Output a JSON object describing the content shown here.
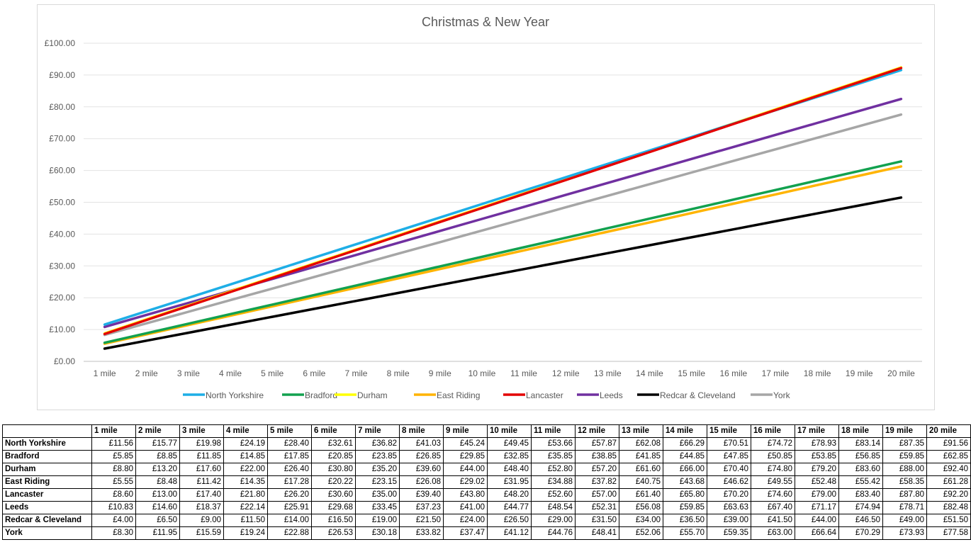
{
  "chart_data": {
    "type": "line",
    "title": "Christmas & New Year",
    "xlabel": "",
    "ylabel": "",
    "categories": [
      "1 mile",
      "2 mile",
      "3 mile",
      "4 mile",
      "5 mile",
      "6 mile",
      "7 mile",
      "8 mile",
      "9 mile",
      "10 mile",
      "11 mile",
      "12 mile",
      "13 mile",
      "14 mile",
      "15 mile",
      "16 mile",
      "17 mile",
      "18 mile",
      "19 mile",
      "20 mile"
    ],
    "ylim": [
      0,
      100
    ],
    "yticks": [
      "£0.00",
      "£10.00",
      "£20.00",
      "£30.00",
      "£40.00",
      "£50.00",
      "£60.00",
      "£70.00",
      "£80.00",
      "£90.00",
      "£100.00"
    ],
    "grid": "horizontal",
    "legend_position": "bottom",
    "series": [
      {
        "name": "North Yorkshire",
        "color": "#1eaee6",
        "values": [
          11.56,
          15.77,
          19.98,
          24.19,
          28.4,
          32.61,
          36.82,
          41.03,
          45.24,
          49.45,
          53.66,
          57.87,
          62.08,
          66.29,
          70.51,
          74.72,
          78.93,
          83.14,
          87.35,
          91.56
        ]
      },
      {
        "name": "Bradford",
        "color": "#12a14f",
        "values": [
          5.85,
          8.85,
          11.85,
          14.85,
          17.85,
          20.85,
          23.85,
          26.85,
          29.85,
          32.85,
          35.85,
          38.85,
          41.85,
          44.85,
          47.85,
          50.85,
          53.85,
          56.85,
          59.85,
          62.85
        ]
      },
      {
        "name": "Durham",
        "color": "#ffff00",
        "values": [
          8.8,
          13.2,
          17.6,
          22.0,
          26.4,
          30.8,
          35.2,
          39.6,
          44.0,
          48.4,
          52.8,
          57.2,
          61.6,
          66.0,
          70.4,
          74.8,
          79.2,
          83.6,
          88.0,
          92.4
        ]
      },
      {
        "name": "East Riding",
        "color": "#ffb400",
        "values": [
          5.55,
          8.48,
          11.42,
          14.35,
          17.28,
          20.22,
          23.15,
          26.08,
          29.02,
          31.95,
          34.88,
          37.82,
          40.75,
          43.68,
          46.62,
          49.55,
          52.48,
          55.42,
          58.35,
          61.28
        ]
      },
      {
        "name": "Lancaster",
        "color": "#e30000",
        "values": [
          8.6,
          13.0,
          17.4,
          21.8,
          26.2,
          30.6,
          35.0,
          39.4,
          43.8,
          48.2,
          52.6,
          57.0,
          61.4,
          65.8,
          70.2,
          74.6,
          79.0,
          83.4,
          87.8,
          92.2
        ]
      },
      {
        "name": "Leeds",
        "color": "#7030a0",
        "values": [
          10.83,
          14.6,
          18.37,
          22.14,
          25.91,
          29.68,
          33.45,
          37.23,
          41.0,
          44.77,
          48.54,
          52.31,
          56.08,
          59.85,
          63.63,
          67.4,
          71.17,
          74.94,
          78.71,
          82.48
        ]
      },
      {
        "name": "Redcar & Cleveland",
        "color": "#000000",
        "values": [
          4.0,
          6.5,
          9.0,
          11.5,
          14.0,
          16.5,
          19.0,
          21.5,
          24.0,
          26.5,
          29.0,
          31.5,
          34.0,
          36.5,
          39.0,
          41.5,
          44.0,
          46.5,
          49.0,
          51.5
        ]
      },
      {
        "name": "York",
        "color": "#a6a6a6",
        "values": [
          8.3,
          11.95,
          15.59,
          19.24,
          22.88,
          26.53,
          30.18,
          33.82,
          37.47,
          41.12,
          44.76,
          48.41,
          52.06,
          55.7,
          59.35,
          63.0,
          66.64,
          70.29,
          73.93,
          77.58
        ]
      }
    ]
  },
  "table": {
    "corner": "",
    "headers": [
      "1 mile",
      "2 mile",
      "3 mile",
      "4 mile",
      "5 mile",
      "6 mile",
      "7 mile",
      "8 mile",
      "9 mile",
      "10 mile",
      "11 mile",
      "12 mile",
      "13 mile",
      "14 mile",
      "15 mile",
      "16 mile",
      "17 mile",
      "18 mile",
      "19 mile",
      "20 mile"
    ],
    "rows": [
      {
        "label": "North Yorkshire",
        "values": [
          "£11.56",
          "£15.77",
          "£19.98",
          "£24.19",
          "£28.40",
          "£32.61",
          "£36.82",
          "£41.03",
          "£45.24",
          "£49.45",
          "£53.66",
          "£57.87",
          "£62.08",
          "£66.29",
          "£70.51",
          "£74.72",
          "£78.93",
          "£83.14",
          "£87.35",
          "£91.56"
        ]
      },
      {
        "label": "Bradford",
        "values": [
          "£5.85",
          "£8.85",
          "£11.85",
          "£14.85",
          "£17.85",
          "£20.85",
          "£23.85",
          "£26.85",
          "£29.85",
          "£32.85",
          "£35.85",
          "£38.85",
          "£41.85",
          "£44.85",
          "£47.85",
          "£50.85",
          "£53.85",
          "£56.85",
          "£59.85",
          "£62.85"
        ]
      },
      {
        "label": "Durham",
        "values": [
          "£8.80",
          "£13.20",
          "£17.60",
          "£22.00",
          "£26.40",
          "£30.80",
          "£35.20",
          "£39.60",
          "£44.00",
          "£48.40",
          "£52.80",
          "£57.20",
          "£61.60",
          "£66.00",
          "£70.40",
          "£74.80",
          "£79.20",
          "£83.60",
          "£88.00",
          "£92.40"
        ]
      },
      {
        "label": "East Riding",
        "values": [
          "£5.55",
          "£8.48",
          "£11.42",
          "£14.35",
          "£17.28",
          "£20.22",
          "£23.15",
          "£26.08",
          "£29.02",
          "£31.95",
          "£34.88",
          "£37.82",
          "£40.75",
          "£43.68",
          "£46.62",
          "£49.55",
          "£52.48",
          "£55.42",
          "£58.35",
          "£61.28"
        ]
      },
      {
        "label": "Lancaster",
        "values": [
          "£8.60",
          "£13.00",
          "£17.40",
          "£21.80",
          "£26.20",
          "£30.60",
          "£35.00",
          "£39.40",
          "£43.80",
          "£48.20",
          "£52.60",
          "£57.00",
          "£61.40",
          "£65.80",
          "£70.20",
          "£74.60",
          "£79.00",
          "£83.40",
          "£87.80",
          "£92.20"
        ]
      },
      {
        "label": "Leeds",
        "values": [
          "£10.83",
          "£14.60",
          "£18.37",
          "£22.14",
          "£25.91",
          "£29.68",
          "£33.45",
          "£37.23",
          "£41.00",
          "£44.77",
          "£48.54",
          "£52.31",
          "£56.08",
          "£59.85",
          "£63.63",
          "£67.40",
          "£71.17",
          "£74.94",
          "£78.71",
          "£82.48"
        ]
      },
      {
        "label": "Redcar & Cleveland",
        "values": [
          "£4.00",
          "£6.50",
          "£9.00",
          "£11.50",
          "£14.00",
          "£16.50",
          "£19.00",
          "£21.50",
          "£24.00",
          "£26.50",
          "£29.00",
          "£31.50",
          "£34.00",
          "£36.50",
          "£39.00",
          "£41.50",
          "£44.00",
          "£46.50",
          "£49.00",
          "£51.50"
        ]
      },
      {
        "label": "York",
        "values": [
          "£8.30",
          "£11.95",
          "£15.59",
          "£19.24",
          "£22.88",
          "£26.53",
          "£30.18",
          "£33.82",
          "£37.47",
          "£41.12",
          "£44.76",
          "£48.41",
          "£52.06",
          "£55.70",
          "£59.35",
          "£63.00",
          "£66.64",
          "£70.29",
          "£73.93",
          "£77.58"
        ]
      }
    ]
  }
}
